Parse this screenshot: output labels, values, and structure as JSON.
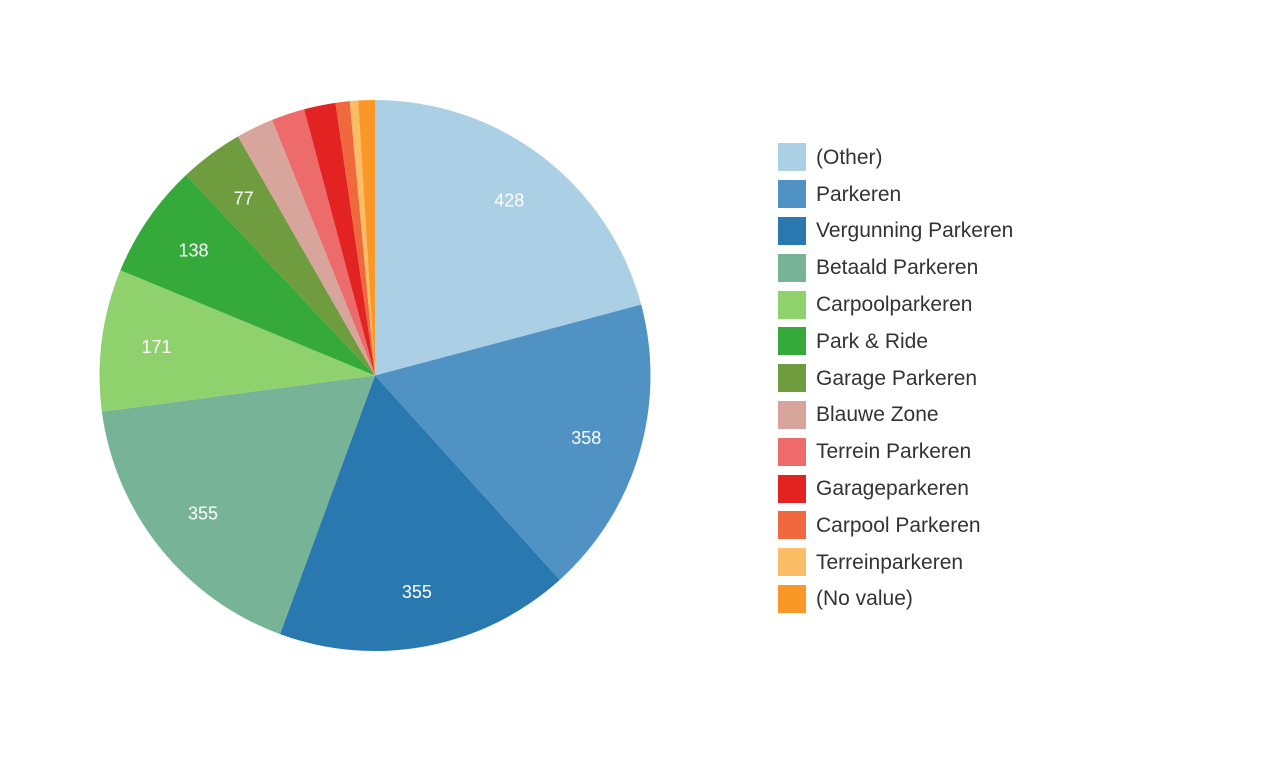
{
  "chart_data": {
    "type": "pie",
    "title": "",
    "legend_position": "right",
    "start_angle_deg": 0,
    "direction": "clockwise",
    "series": [
      {
        "label": "(Other)",
        "value": 428,
        "color": "#abd0e6",
        "show_value": true
      },
      {
        "label": "Parkeren",
        "value": 358,
        "color": "#4f92c3",
        "show_value": true
      },
      {
        "label": "Vergunning Parkeren",
        "value": 355,
        "color": "#2979b0",
        "show_value": true
      },
      {
        "label": "Betaald Parkeren",
        "value": 355,
        "color": "#77b396",
        "show_value": true
      },
      {
        "label": "Carpoolparkeren",
        "value": 171,
        "color": "#8ed16d",
        "show_value": true
      },
      {
        "label": "Park & Ride",
        "value": 138,
        "color": "#36a93b",
        "show_value": true
      },
      {
        "label": "Garage Parkeren",
        "value": 77,
        "color": "#6e9c3f",
        "show_value": true
      },
      {
        "label": "Blauwe Zone",
        "value": 45,
        "color": "#d7a59b",
        "show_value": false
      },
      {
        "label": "Terrein Parkeren",
        "value": 40,
        "color": "#ee6b6b",
        "show_value": false
      },
      {
        "label": "Garageparkeren",
        "value": 38,
        "color": "#e32222",
        "show_value": false
      },
      {
        "label": "Carpool Parkeren",
        "value": 17,
        "color": "#f0683e",
        "show_value": false
      },
      {
        "label": "Terreinparkeren",
        "value": 10,
        "color": "#fbbd66",
        "show_value": false
      },
      {
        "label": "(No value)",
        "value": 20,
        "color": "#fa9827",
        "show_value": false
      }
    ]
  }
}
